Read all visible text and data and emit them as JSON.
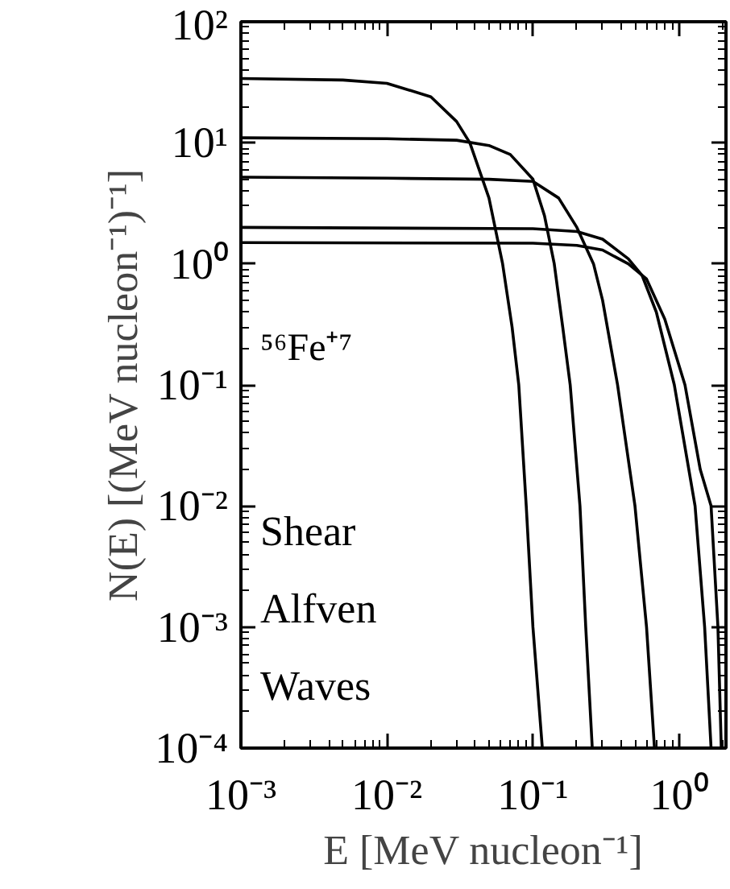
{
  "chart_data": {
    "type": "line",
    "xlabel": "E [MeV nucleon⁻¹]",
    "ylabel": "N(E) [(MeV nucleon⁻¹)⁻¹]",
    "log": "xy",
    "grid": false,
    "xlim": [
      0.001,
      2.1
    ],
    "ylim": [
      0.0001,
      100
    ],
    "xticks": [
      {
        "value": 0.001,
        "label": "10⁻³"
      },
      {
        "value": 0.01,
        "label": "10⁻²"
      },
      {
        "value": 0.1,
        "label": "10⁻¹"
      },
      {
        "value": 1,
        "label": "10⁰"
      }
    ],
    "yticks": [
      {
        "value": 0.0001,
        "label": "10⁻⁴"
      },
      {
        "value": 0.001,
        "label": "10⁻³"
      },
      {
        "value": 0.01,
        "label": "10⁻²"
      },
      {
        "value": 0.1,
        "label": "10⁻¹"
      },
      {
        "value": 1,
        "label": "10⁰"
      },
      {
        "value": 10,
        "label": "10¹"
      },
      {
        "value": 100,
        "label": "10²"
      }
    ],
    "annotations": [
      "⁵⁶Fe⁺⁷",
      "Shear",
      "Alfven",
      "Waves"
    ],
    "series": [
      {
        "color": "#000000",
        "x": [
          0.001,
          0.005,
          0.01,
          0.02,
          0.03,
          0.037,
          0.05,
          0.062,
          0.072,
          0.08,
          0.09,
          0.1,
          0.116
        ],
        "values": [
          34,
          33,
          31,
          24,
          15,
          10,
          3.5,
          1,
          0.3,
          0.1,
          0.01,
          0.001,
          0.0001
        ]
      },
      {
        "color": "#000000",
        "x": [
          0.001,
          0.01,
          0.03,
          0.05,
          0.07,
          0.1,
          0.12,
          0.14,
          0.16,
          0.18,
          0.21,
          0.23,
          0.255
        ],
        "values": [
          11,
          10.8,
          10.5,
          9.5,
          8,
          5,
          2.5,
          1,
          0.3,
          0.1,
          0.01,
          0.001,
          0.0001
        ]
      },
      {
        "color": "#000000",
        "x": [
          0.001,
          0.01,
          0.05,
          0.1,
          0.15,
          0.2,
          0.26,
          0.3,
          0.38,
          0.5,
          0.6,
          0.68
        ],
        "values": [
          5.2,
          5.1,
          5,
          4.8,
          3.5,
          2,
          1,
          0.5,
          0.1,
          0.01,
          0.001,
          0.0001
        ]
      },
      {
        "color": "#000000",
        "x": [
          0.001,
          0.1,
          0.2,
          0.3,
          0.45,
          0.56,
          0.7,
          0.93,
          1.29,
          1.5,
          1.66
        ],
        "values": [
          2.0,
          1.95,
          1.85,
          1.6,
          1.1,
          0.8,
          0.4,
          0.1,
          0.01,
          0.001,
          0.0001
        ]
      },
      {
        "color": "#000000",
        "x": [
          0.001,
          0.1,
          0.2,
          0.3,
          0.45,
          0.6,
          0.8,
          1.1,
          1.4,
          1.66,
          1.85,
          1.95
        ],
        "values": [
          1.5,
          1.48,
          1.42,
          1.3,
          1.0,
          0.75,
          0.35,
          0.1,
          0.02,
          0.01,
          0.001,
          0.0001
        ]
      }
    ]
  }
}
